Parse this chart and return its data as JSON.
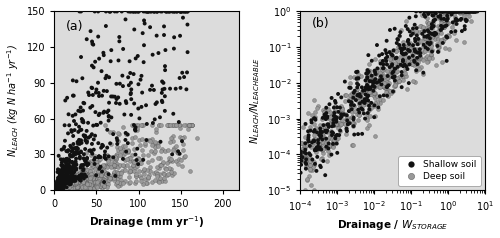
{
  "panel_a": {
    "label": "(a)",
    "background_color": "#dcdcdc",
    "xlabel": "Drainage (mm yr$^{-1}$)",
    "ylabel": "$N_{LEACH}$ (kg N ha$^{-1}$ yr$^{-1}$)",
    "xlim": [
      0,
      220
    ],
    "ylim": [
      0,
      150
    ],
    "xticks": [
      0,
      50,
      100,
      150,
      200
    ],
    "yticks": [
      0,
      30,
      60,
      90,
      120,
      150
    ]
  },
  "panel_b": {
    "label": "(b)",
    "background_color": "#dcdcdc",
    "xlabel": "Drainage / $W_{STORAGE}$",
    "ylabel": "$N_{LEACH}$/$N_{LEACHEABLE}$",
    "legend_labels": [
      "Shallow soil",
      "Deep soil"
    ]
  },
  "shallow_color": "#111111",
  "deep_color": "#999999",
  "marker_size_a": 8,
  "marker_size_b": 8,
  "marker_style": "o",
  "figsize": [
    5.0,
    2.38
  ],
  "dpi": 100
}
